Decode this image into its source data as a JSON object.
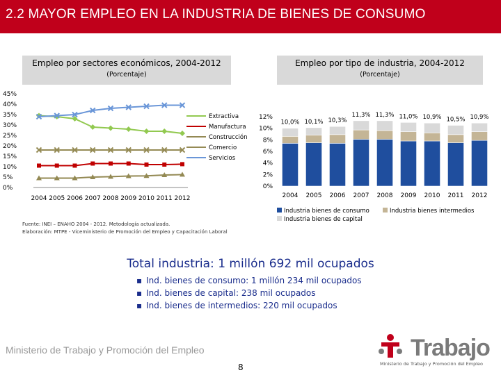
{
  "slide": {
    "title": "2.2 MAYOR EMPLEO EN LA INDUSTRIA DE BIENES DE CONSUMO",
    "page_number": "8"
  },
  "left_panel": {
    "title": "Empleo por sectores económicos, 2004-2012",
    "subtitle": "(Porcentaje)"
  },
  "right_panel": {
    "title": "Empleo por tipo de industria, 2004-2012",
    "subtitle": "(Porcentaje)"
  },
  "source": {
    "line1": "Fuente: INEI – ENAHO 2004 - 2012. Metodología actualizada.",
    "line2": "Elaboración: MTPE - Viceministerio de Promoción del Empleo y Capacitación Laboral"
  },
  "summary": {
    "total": "Total industria: 1 millón 692 mil ocupados",
    "items": [
      "Ind. bienes de consumo: 1 millón 234 mil ocupados",
      "Ind. bienes de capital: 238 mil ocupados",
      "Ind. bienes de intermedios: 220 mil ocupados"
    ]
  },
  "footer": {
    "ministry": "Ministerio de Trabajo y Promoción del Empleo",
    "brand": "Trabajo",
    "brand_sub": "Ministerio de Trabajo y Promoción del Empleo"
  },
  "colors": {
    "header_bg": "#c0001b",
    "panel_bg": "#d9d9d9",
    "extractiva": "#92c950",
    "manufactura": "#c00000",
    "construccion": "#938953",
    "comercio": "#948a54",
    "servicios": "#6a96d8",
    "consumo": "#1f4e9e",
    "capital": "#d9d9d9",
    "intermedios": "#c4b596",
    "total_text": "#1a2d8c"
  },
  "chart_data": [
    {
      "type": "line",
      "title": "Empleo por sectores económicos, 2004-2012",
      "subtitle": "(Porcentaje)",
      "x": [
        "2004",
        "2005",
        "2006",
        "2007",
        "2008",
        "2009",
        "2010",
        "2011",
        "2012"
      ],
      "ylim": [
        0,
        45
      ],
      "yticks": [
        "0%",
        "5%",
        "10%",
        "15%",
        "20%",
        "25%",
        "30%",
        "35%",
        "40%",
        "45%"
      ],
      "series": [
        {
          "name": "Extractiva",
          "values": [
            34.5,
            34.0,
            33.0,
            29.0,
            28.5,
            28.0,
            27.0,
            27.0,
            26.0
          ]
        },
        {
          "name": "Manufactura",
          "values": [
            10.5,
            10.5,
            10.5,
            11.5,
            11.5,
            11.5,
            11.0,
            11.0,
            11.2
          ]
        },
        {
          "name": "Construcción",
          "values": [
            4.5,
            4.5,
            4.5,
            5.0,
            5.2,
            5.5,
            5.6,
            6.0,
            6.2
          ]
        },
        {
          "name": "Comercio",
          "values": [
            18.0,
            18.0,
            18.0,
            18.0,
            18.0,
            18.0,
            18.0,
            18.0,
            18.0
          ]
        },
        {
          "name": "Servicios",
          "values": [
            34.0,
            34.5,
            35.0,
            37.0,
            38.0,
            38.5,
            39.0,
            39.5,
            39.5
          ]
        }
      ]
    },
    {
      "type": "bar",
      "stacked": true,
      "title": "Empleo por tipo de industria, 2004-2012",
      "subtitle": "(Porcentaje)",
      "categories": [
        "2004",
        "2005",
        "2006",
        "2007",
        "2008",
        "2009",
        "2010",
        "2011",
        "2012"
      ],
      "ylim": [
        0,
        12
      ],
      "yticks": [
        "0%",
        "2%",
        "4%",
        "6%",
        "8%",
        "10%",
        "12%"
      ],
      "series": [
        {
          "name": "Industria bienes de consumo",
          "values": [
            7.4,
            7.5,
            7.4,
            8.1,
            8.1,
            7.8,
            7.8,
            7.5,
            7.9
          ]
        },
        {
          "name": "Industria bienes de capital",
          "values": [
            1.4,
            1.3,
            1.4,
            1.6,
            1.7,
            1.6,
            1.7,
            1.6,
            1.5
          ]
        },
        {
          "name": "Industria bienes intermedios",
          "values": [
            1.2,
            1.3,
            1.5,
            1.6,
            1.5,
            1.6,
            1.4,
            1.4,
            1.5
          ]
        }
      ],
      "totals": [
        "10,0%",
        "10,1%",
        "10,3%",
        "11,3%",
        "11,3%",
        "11,0%",
        "10,9%",
        "10,5%",
        "10,9%"
      ]
    }
  ]
}
